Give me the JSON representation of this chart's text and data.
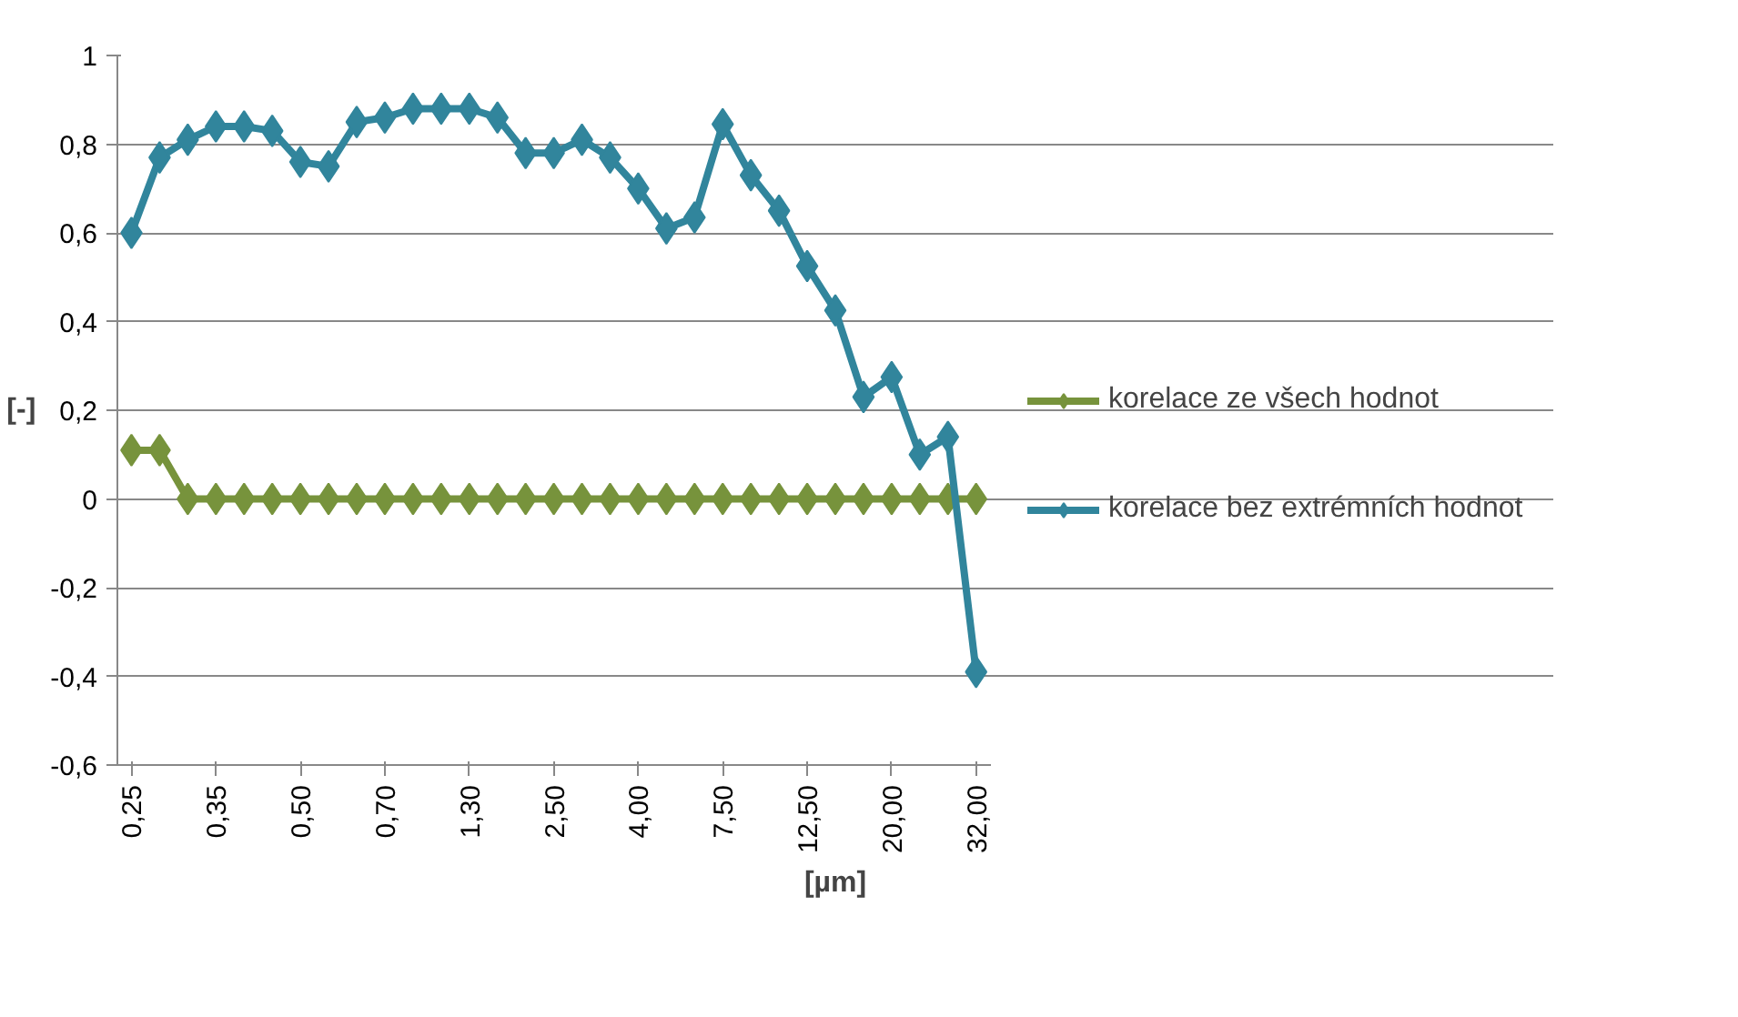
{
  "chart_data": {
    "type": "line",
    "xlabel": "[µm]",
    "ylabel": "[-]",
    "categories": [
      "0,25",
      null,
      null,
      "0,35",
      null,
      null,
      "0,50",
      null,
      null,
      "0,70",
      null,
      null,
      "1,30",
      null,
      null,
      "2,50",
      null,
      null,
      "4,00",
      null,
      null,
      "7,50",
      null,
      null,
      "12,50",
      null,
      null,
      "20,00",
      null,
      null,
      "32,00"
    ],
    "series": [
      {
        "name": "korelace ze všech hodnot",
        "color": "#77933c",
        "values": [
          0.11,
          0.11,
          0,
          0,
          0,
          0,
          0,
          0,
          0,
          0,
          0,
          0,
          0,
          0,
          0,
          0,
          0,
          0,
          0,
          0,
          0,
          0,
          0,
          0,
          0,
          0,
          0,
          0,
          0,
          0,
          0
        ]
      },
      {
        "name": "korelace bez extrémních hodnot",
        "color": "#31859c",
        "values": [
          0.6,
          0.77,
          0.81,
          0.84,
          0.84,
          0.83,
          0.76,
          0.75,
          0.85,
          0.86,
          0.88,
          0.88,
          0.88,
          0.86,
          0.78,
          0.78,
          0.81,
          0.77,
          0.7,
          0.61,
          0.635,
          0.845,
          0.73,
          0.65,
          0.525,
          0.425,
          0.23,
          0.275,
          0.1,
          0.14,
          -0.39
        ]
      }
    ],
    "ylim": [
      -0.6,
      1
    ],
    "yticks": [
      {
        "value": -0.6,
        "label": "-0,6"
      },
      {
        "value": -0.4,
        "label": "-0,4"
      },
      {
        "value": -0.2,
        "label": "-0,2"
      },
      0,
      {
        "value": 0.2,
        "label": "0,2"
      },
      {
        "value": 0.4,
        "label": "0,4"
      },
      {
        "value": 0.6,
        "label": "0,6"
      },
      {
        "value": 0.8,
        "label": "0,8"
      },
      1
    ],
    "grid": "y",
    "legend": "right",
    "marker": "diamond",
    "line_style": "solid"
  }
}
